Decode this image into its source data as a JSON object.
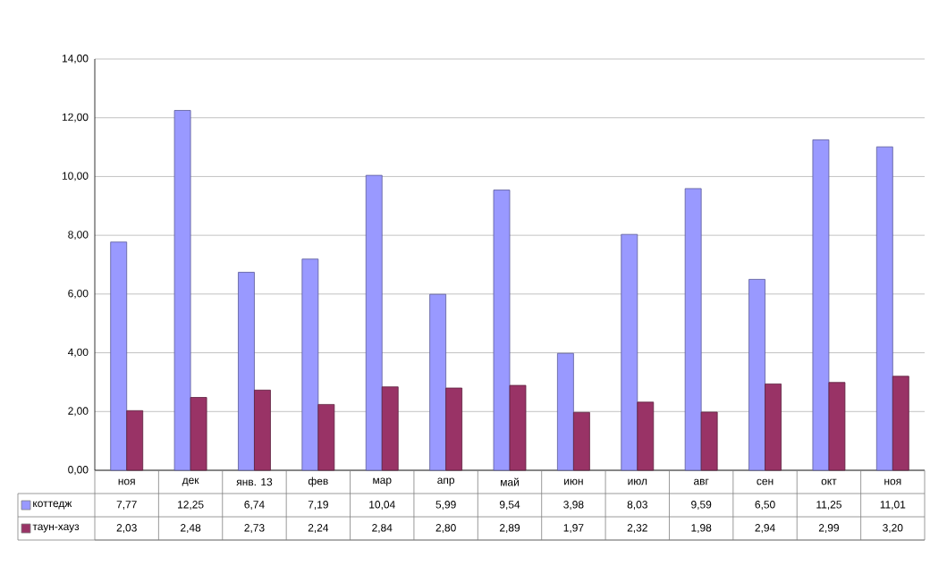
{
  "chart_data": {
    "type": "bar",
    "categories": [
      "ноя",
      "дек",
      "янв. 13",
      "фев",
      "мар",
      "апр",
      "май",
      "июн",
      "июл",
      "авг",
      "сен",
      "окт",
      "ноя"
    ],
    "series": [
      {
        "name": "коттедж",
        "color": "#9999ff",
        "values": [
          7.77,
          12.25,
          6.74,
          7.19,
          10.04,
          5.99,
          9.54,
          3.98,
          8.03,
          9.59,
          6.5,
          11.25,
          11.01
        ],
        "value_labels": [
          "7,77",
          "12,25",
          "6,74",
          "7,19",
          "10,04",
          "5,99",
          "9,54",
          "3,98",
          "8,03",
          "9,59",
          "6,50",
          "11,25",
          "11,01"
        ]
      },
      {
        "name": "таун-хауз",
        "color": "#993366",
        "values": [
          2.03,
          2.48,
          2.73,
          2.24,
          2.84,
          2.8,
          2.89,
          1.97,
          2.32,
          1.98,
          2.94,
          2.99,
          3.2
        ],
        "value_labels": [
          "2,03",
          "2,48",
          "2,73",
          "2,24",
          "2,84",
          "2,80",
          "2,89",
          "1,97",
          "2,32",
          "1,98",
          "2,94",
          "2,99",
          "3,20"
        ]
      }
    ],
    "ylim": [
      0,
      14
    ],
    "yticks": [
      {
        "value": 0,
        "label": "0,00"
      },
      {
        "value": 2,
        "label": "2,00"
      },
      {
        "value": 4,
        "label": "4,00"
      },
      {
        "value": 6,
        "label": "6,00"
      },
      {
        "value": 8,
        "label": "8,00"
      },
      {
        "value": 10,
        "label": "10,00"
      },
      {
        "value": 12,
        "label": "12,00"
      },
      {
        "value": 14,
        "label": "14,00"
      }
    ],
    "grid": "y",
    "legend": "bottom left"
  }
}
